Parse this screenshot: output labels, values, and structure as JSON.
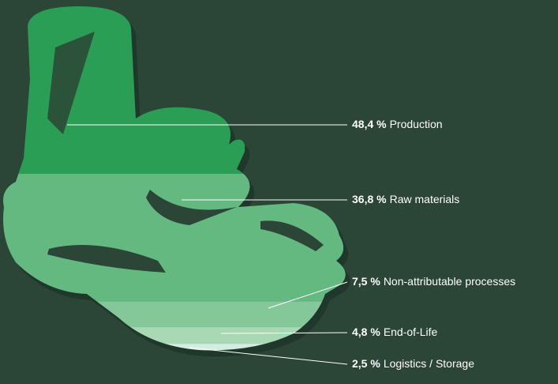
{
  "chart_data": {
    "type": "silhouette-stack",
    "categories": [
      "Production",
      "Raw materials",
      "Non-attributable processes",
      "End-of-Life",
      "Logistics / Storage"
    ],
    "values": [
      48.4,
      36.8,
      7.5,
      4.8,
      2.5
    ],
    "value_labels": [
      "48,4 %",
      "36,8 %",
      "7,5 %",
      "4,8 %",
      "2,5 %"
    ],
    "colors": [
      "#2a9e55",
      "#64b981",
      "#84c798",
      "#a9d8b5",
      "#d3ede0"
    ]
  }
}
